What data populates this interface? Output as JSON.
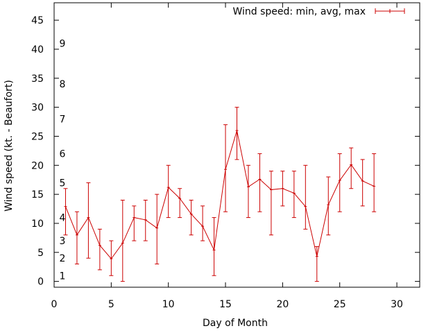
{
  "chart_data": {
    "type": "line",
    "title": "",
    "xlabel": "Day of Month",
    "ylabel": "Wind speed (kt. - Beaufort)",
    "xlim": [
      0,
      32
    ],
    "ylim": [
      -1,
      48
    ],
    "xticks": [
      0,
      5,
      10,
      15,
      20,
      25,
      30
    ],
    "yticks": [
      0,
      5,
      10,
      15,
      20,
      25,
      30,
      35,
      40,
      45
    ],
    "grid": false,
    "legend_position": "top-right",
    "beaufort_labels": [
      {
        "label": "1",
        "value": 1
      },
      {
        "label": "2",
        "value": 4
      },
      {
        "label": "3",
        "value": 7
      },
      {
        "label": "4",
        "value": 11
      },
      {
        "label": "5",
        "value": 17
      },
      {
        "label": "6",
        "value": 22
      },
      {
        "label": "7",
        "value": 28
      },
      {
        "label": "8",
        "value": 34
      },
      {
        "label": "9",
        "value": 41
      }
    ],
    "series": [
      {
        "name": "Wind speed: min, avg, max",
        "color": "#cc0000",
        "x": [
          1,
          2,
          3,
          4,
          5,
          6,
          7,
          8,
          9,
          10,
          11,
          12,
          13,
          14,
          15,
          16,
          17,
          18,
          19,
          20,
          21,
          22,
          23,
          24,
          25,
          26,
          27,
          28
        ],
        "avg": [
          12.9,
          8.0,
          11.0,
          6.2,
          3.9,
          6.6,
          11.0,
          10.6,
          9.2,
          16.2,
          14.3,
          11.6,
          9.5,
          5.4,
          19.3,
          26.0,
          16.3,
          17.6,
          15.8,
          16.0,
          15.2,
          12.9,
          4.3,
          13.2,
          17.4,
          20.1,
          17.3,
          16.4
        ],
        "min": [
          8,
          3,
          4,
          2,
          1,
          0,
          7,
          7,
          3,
          11,
          11,
          8,
          7,
          1,
          12,
          21,
          11,
          12,
          8,
          13,
          11,
          9,
          0,
          8,
          12,
          16,
          13,
          12
        ],
        "max": [
          16,
          12,
          17,
          9,
          7,
          14,
          13,
          14,
          15,
          20,
          16,
          14,
          13,
          11,
          27,
          30,
          20,
          22,
          19,
          19,
          19,
          20,
          6,
          18,
          22,
          23,
          21,
          22
        ]
      }
    ]
  }
}
